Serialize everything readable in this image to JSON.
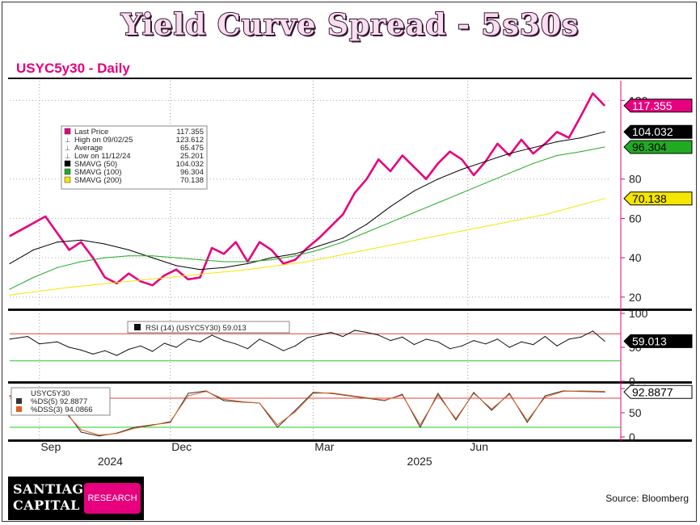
{
  "page": {
    "title": "Yield Curve Spread - 5s30s",
    "subtitle": "USYC5y30 - Daily",
    "source": "Source: Bloomberg",
    "logo": {
      "line1": "SANTIAGO",
      "line2": "CAPITAL",
      "badge": "RESEARCH"
    }
  },
  "chart_data": [
    {
      "type": "line",
      "panel": "price",
      "ylim": [
        15,
        130
      ],
      "yticks": [
        20,
        40,
        60,
        80,
        120
      ],
      "grid": true,
      "legend_position": "top-left",
      "legend": [
        {
          "label": "Last Price",
          "value": "117.355",
          "color": "#e6007e"
        },
        {
          "label": "High on 09/02/25",
          "value": "123.612"
        },
        {
          "label": "Average",
          "value": "65.475"
        },
        {
          "label": "Low on 11/12/24",
          "value": "25.201"
        },
        {
          "label": "SMAVG (50)",
          "value": "104.032",
          "color": "#000000"
        },
        {
          "label": "SMAVG (100)",
          "value": "96.304",
          "color": "#22aa22"
        },
        {
          "label": "SMAVG (200)",
          "value": "70.138",
          "color": "#f5e600"
        }
      ],
      "value_tags": [
        {
          "value": 117.355,
          "text": "117.355",
          "bg": "#e6007e",
          "fg": "#ffffff"
        },
        {
          "value": 104.032,
          "text": "104.032",
          "bg": "#000000",
          "fg": "#ffffff"
        },
        {
          "value": 96.304,
          "text": "96.304",
          "bg": "#22aa22",
          "fg": "#000000"
        },
        {
          "value": 70.138,
          "text": "70.138",
          "bg": "#f5e600",
          "fg": "#000000"
        }
      ],
      "series": [
        {
          "name": "Last Price",
          "color": "#e6007e",
          "x": [
            0,
            3,
            6,
            10,
            12,
            14,
            16,
            18,
            20,
            22,
            24,
            26,
            28,
            30,
            32,
            34,
            36,
            38,
            40,
            42,
            44,
            46,
            48,
            50,
            52,
            54,
            56,
            58,
            60,
            62,
            64,
            66,
            68,
            70,
            72,
            74,
            76,
            78,
            80,
            82,
            84,
            86,
            88,
            90,
            92,
            94,
            96,
            98,
            100
          ],
          "y": [
            51,
            56,
            61,
            44,
            48,
            40,
            30,
            27,
            32,
            28,
            26,
            31,
            34,
            29,
            30,
            45,
            42,
            48,
            38,
            48,
            44,
            37,
            39,
            45,
            50,
            56,
            62,
            73,
            80,
            90,
            84,
            92,
            86,
            80,
            88,
            94,
            90,
            82,
            89,
            98,
            92,
            100,
            93,
            98,
            104,
            101,
            112,
            123.612,
            117.355
          ]
        },
        {
          "name": "SMAVG (50)",
          "color": "#000000",
          "x": [
            0,
            4,
            8,
            12,
            16,
            20,
            24,
            28,
            32,
            36,
            40,
            44,
            48,
            52,
            56,
            60,
            64,
            68,
            72,
            76,
            80,
            84,
            88,
            92,
            96,
            100
          ],
          "y": [
            37,
            44,
            48,
            49,
            47,
            44,
            40,
            36,
            34,
            35,
            37,
            40,
            42,
            46,
            50,
            57,
            66,
            74,
            80,
            85,
            89,
            93,
            96,
            99,
            101,
            104.032
          ]
        },
        {
          "name": "SMAVG (100)",
          "color": "#22aa22",
          "x": [
            0,
            4,
            8,
            12,
            16,
            20,
            24,
            28,
            32,
            36,
            40,
            44,
            48,
            52,
            56,
            60,
            64,
            68,
            72,
            76,
            80,
            84,
            88,
            92,
            96,
            100
          ],
          "y": [
            24,
            30,
            35,
            38,
            40,
            41,
            41,
            40,
            39,
            38,
            38,
            39,
            41,
            44,
            48,
            53,
            58,
            63,
            68,
            73,
            78,
            83,
            88,
            92,
            94,
            96.304
          ]
        },
        {
          "name": "SMAVG (200)",
          "color": "#f5e600",
          "x": [
            0,
            10,
            20,
            30,
            40,
            50,
            60,
            70,
            80,
            90,
            100
          ],
          "y": [
            21,
            25,
            28,
            31,
            34,
            38,
            44,
            50,
            56,
            62,
            70.138
          ]
        }
      ],
      "x_tick_labels": [
        {
          "x": 5,
          "label": "Sep"
        },
        {
          "x": 27,
          "label": "Dec"
        },
        {
          "x": 51,
          "label": "Mar"
        },
        {
          "x": 77,
          "label": "Jun"
        }
      ],
      "x_year_labels": [
        {
          "x": 15,
          "label": "2024"
        },
        {
          "x": 67,
          "label": "2025"
        }
      ]
    },
    {
      "type": "line",
      "panel": "rsi",
      "ylim": [
        0,
        100
      ],
      "yticks": [
        0,
        50,
        100
      ],
      "reference_lines": [
        {
          "value": 70,
          "color": "#e04040"
        },
        {
          "value": 30,
          "color": "#22cc22"
        }
      ],
      "legend": [
        {
          "label": "RSI (14) (USYC5Y30)",
          "value": "59.013"
        }
      ],
      "value_tag": {
        "value": 59.013,
        "text": "59.013",
        "bg": "#000000",
        "fg": "#ffffff"
      },
      "series": [
        {
          "name": "RSI (14) (USYC5Y30)",
          "color": "#111111",
          "x": [
            0,
            3,
            5,
            8,
            10,
            12,
            14,
            16,
            18,
            20,
            22,
            24,
            26,
            28,
            30,
            32,
            34,
            36,
            38,
            40,
            42,
            44,
            46,
            48,
            50,
            52,
            54,
            56,
            58,
            60,
            62,
            64,
            66,
            68,
            70,
            72,
            74,
            76,
            78,
            80,
            82,
            84,
            86,
            88,
            90,
            92,
            94,
            96,
            98,
            100
          ],
          "y": [
            62,
            66,
            55,
            58,
            50,
            46,
            40,
            45,
            38,
            47,
            52,
            44,
            56,
            50,
            62,
            58,
            68,
            60,
            55,
            48,
            62,
            54,
            45,
            52,
            64,
            68,
            72,
            66,
            75,
            72,
            68,
            60,
            65,
            54,
            62,
            58,
            48,
            52,
            60,
            55,
            62,
            50,
            58,
            54,
            66,
            52,
            62,
            65,
            74,
            59.013
          ]
        }
      ]
    },
    {
      "type": "line",
      "panel": "stochastic",
      "ylim": [
        -5,
        105
      ],
      "yticks": [
        0,
        50,
        100
      ],
      "reference_lines": [
        {
          "value": 80,
          "color": "#e04040"
        },
        {
          "value": 20,
          "color": "#22cc22"
        }
      ],
      "legend": [
        {
          "label": "USYC5Y30"
        },
        {
          "label": "%DS(5)",
          "value": "92.8877",
          "color": "#333333"
        },
        {
          "label": "%DSS(3)",
          "value": "94.0866",
          "color": "#e06020"
        }
      ],
      "value_tag": {
        "value": 92.8877,
        "text": "92.8877",
        "bg": "#ffffff",
        "fg": "#000000"
      },
      "series": [
        {
          "name": "%DS(5)",
          "color": "#333333",
          "x": [
            0,
            3,
            6,
            9,
            12,
            15,
            18,
            21,
            24,
            27,
            30,
            33,
            36,
            39,
            42,
            45,
            48,
            51,
            54,
            57,
            60,
            63,
            66,
            69,
            72,
            75,
            78,
            81,
            84,
            87,
            90,
            93,
            96,
            100
          ],
          "y": [
            85,
            80,
            45,
            60,
            10,
            2,
            8,
            20,
            25,
            30,
            90,
            95,
            75,
            72,
            70,
            20,
            55,
            92,
            90,
            85,
            80,
            75,
            88,
            20,
            90,
            35,
            92,
            55,
            90,
            30,
            85,
            95,
            94,
            92.8877
          ]
        },
        {
          "name": "%DSS(3)",
          "color": "#e06020",
          "x": [
            0,
            3,
            6,
            9,
            12,
            15,
            18,
            21,
            24,
            27,
            30,
            33,
            36,
            39,
            42,
            45,
            48,
            51,
            54,
            57,
            60,
            63,
            66,
            69,
            72,
            75,
            78,
            81,
            84,
            87,
            90,
            93,
            96,
            100
          ],
          "y": [
            84,
            78,
            48,
            55,
            15,
            4,
            7,
            18,
            24,
            32,
            85,
            94,
            78,
            73,
            70,
            25,
            52,
            90,
            91,
            86,
            81,
            76,
            86,
            25,
            86,
            38,
            90,
            58,
            88,
            34,
            82,
            94,
            95,
            94.0866
          ]
        }
      ]
    }
  ]
}
